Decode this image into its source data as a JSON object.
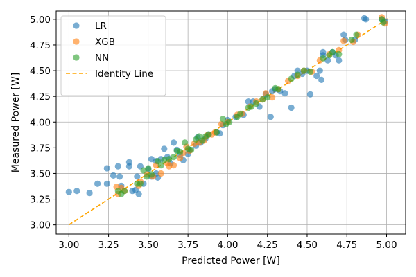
{
  "chart_data": {
    "type": "scatter",
    "title": "",
    "xlabel": "Predicted Power [W]",
    "ylabel": "Measured Power [W]",
    "xlim": [
      2.92,
      5.12
    ],
    "ylim": [
      2.91,
      5.08
    ],
    "xticks": [
      "3.00",
      "3.25",
      "3.50",
      "3.75",
      "4.00",
      "4.25",
      "4.50",
      "4.75",
      "5.00"
    ],
    "yticks": [
      "3.00",
      "3.25",
      "3.50",
      "3.75",
      "4.00",
      "4.25",
      "4.50",
      "4.75",
      "5.00"
    ],
    "grid": true,
    "legend_position": "top-left",
    "series": [
      {
        "name": "LR",
        "kind": "scatter",
        "color": "#1f77b4",
        "points": [
          [
            3.0,
            3.32
          ],
          [
            3.05,
            3.33
          ],
          [
            3.13,
            3.31
          ],
          [
            3.18,
            3.4
          ],
          [
            3.24,
            3.55
          ],
          [
            3.24,
            3.4
          ],
          [
            3.28,
            3.48
          ],
          [
            3.31,
            3.57
          ],
          [
            3.32,
            3.47
          ],
          [
            3.33,
            3.38
          ],
          [
            3.38,
            3.57
          ],
          [
            3.38,
            3.61
          ],
          [
            3.4,
            3.33
          ],
          [
            3.42,
            3.34
          ],
          [
            3.43,
            3.47
          ],
          [
            3.44,
            3.3
          ],
          [
            3.45,
            3.57
          ],
          [
            3.47,
            3.4
          ],
          [
            3.5,
            3.54
          ],
          [
            3.52,
            3.64
          ],
          [
            3.52,
            3.47
          ],
          [
            3.55,
            3.5
          ],
          [
            3.55,
            3.62
          ],
          [
            3.56,
            3.46
          ],
          [
            3.58,
            3.64
          ],
          [
            3.6,
            3.74
          ],
          [
            3.62,
            3.66
          ],
          [
            3.64,
            3.6
          ],
          [
            3.66,
            3.8
          ],
          [
            3.68,
            3.73
          ],
          [
            3.7,
            3.68
          ],
          [
            3.72,
            3.63
          ],
          [
            3.75,
            3.69
          ],
          [
            3.76,
            3.73
          ],
          [
            3.8,
            3.77
          ],
          [
            3.81,
            3.85
          ],
          [
            3.83,
            3.8
          ],
          [
            3.86,
            3.84
          ],
          [
            3.88,
            3.88
          ],
          [
            3.93,
            3.9
          ],
          [
            3.95,
            3.89
          ],
          [
            3.97,
            3.97
          ],
          [
            4.0,
            4.02
          ],
          [
            4.05,
            4.05
          ],
          [
            4.1,
            4.07
          ],
          [
            4.13,
            4.2
          ],
          [
            4.16,
            4.2
          ],
          [
            4.2,
            4.15
          ],
          [
            4.24,
            4.27
          ],
          [
            4.27,
            4.05
          ],
          [
            4.28,
            4.3
          ],
          [
            4.3,
            4.32
          ],
          [
            4.33,
            4.3
          ],
          [
            4.36,
            4.28
          ],
          [
            4.4,
            4.14
          ],
          [
            4.42,
            4.45
          ],
          [
            4.44,
            4.5
          ],
          [
            4.47,
            4.47
          ],
          [
            4.5,
            4.5
          ],
          [
            4.52,
            4.27
          ],
          [
            4.56,
            4.45
          ],
          [
            4.58,
            4.5
          ],
          [
            4.59,
            4.41
          ],
          [
            4.6,
            4.65
          ],
          [
            4.6,
            4.68
          ],
          [
            4.63,
            4.6
          ],
          [
            4.66,
            4.68
          ],
          [
            4.68,
            4.65
          ],
          [
            4.7,
            4.6
          ],
          [
            4.73,
            4.85
          ],
          [
            4.74,
            4.8
          ],
          [
            4.8,
            4.8
          ],
          [
            4.86,
            5.01
          ],
          [
            4.87,
            5.0
          ],
          [
            4.97,
            5.0
          ],
          [
            4.99,
            4.98
          ]
        ]
      },
      {
        "name": "XGB",
        "kind": "scatter",
        "color": "#ff7f0e",
        "points": [
          [
            3.3,
            3.37
          ],
          [
            3.31,
            3.3
          ],
          [
            3.33,
            3.36
          ],
          [
            3.35,
            3.33
          ],
          [
            3.44,
            3.38
          ],
          [
            3.45,
            3.42
          ],
          [
            3.49,
            3.49
          ],
          [
            3.53,
            3.47
          ],
          [
            3.55,
            3.58
          ],
          [
            3.58,
            3.5
          ],
          [
            3.62,
            3.6
          ],
          [
            3.63,
            3.57
          ],
          [
            3.66,
            3.58
          ],
          [
            3.7,
            3.65
          ],
          [
            3.72,
            3.7
          ],
          [
            3.74,
            3.76
          ],
          [
            3.76,
            3.72
          ],
          [
            3.79,
            3.79
          ],
          [
            3.82,
            3.8
          ],
          [
            3.85,
            3.82
          ],
          [
            3.87,
            3.87
          ],
          [
            3.9,
            3.88
          ],
          [
            3.92,
            3.9
          ],
          [
            3.96,
            3.98
          ],
          [
            4.0,
            4.0
          ],
          [
            4.06,
            4.07
          ],
          [
            4.09,
            4.08
          ],
          [
            4.14,
            4.15
          ],
          [
            4.18,
            4.2
          ],
          [
            4.22,
            4.22
          ],
          [
            4.24,
            4.28
          ],
          [
            4.28,
            4.24
          ],
          [
            4.32,
            4.32
          ],
          [
            4.38,
            4.4
          ],
          [
            4.44,
            4.45
          ],
          [
            4.48,
            4.5
          ],
          [
            4.53,
            4.49
          ],
          [
            4.58,
            4.6
          ],
          [
            4.64,
            4.66
          ],
          [
            4.7,
            4.7
          ],
          [
            4.73,
            4.79
          ],
          [
            4.79,
            4.78
          ],
          [
            4.82,
            4.85
          ],
          [
            4.97,
            5.02
          ],
          [
            4.99,
            4.96
          ]
        ]
      },
      {
        "name": "NN",
        "kind": "scatter",
        "color": "#2ca02c",
        "points": [
          [
            3.31,
            3.33
          ],
          [
            3.33,
            3.3
          ],
          [
            3.35,
            3.33
          ],
          [
            3.43,
            3.4
          ],
          [
            3.45,
            3.4
          ],
          [
            3.47,
            3.53
          ],
          [
            3.49,
            3.47
          ],
          [
            3.5,
            3.55
          ],
          [
            3.52,
            3.49
          ],
          [
            3.56,
            3.62
          ],
          [
            3.58,
            3.58
          ],
          [
            3.6,
            3.63
          ],
          [
            3.63,
            3.64
          ],
          [
            3.66,
            3.66
          ],
          [
            3.68,
            3.72
          ],
          [
            3.7,
            3.71
          ],
          [
            3.73,
            3.8
          ],
          [
            3.75,
            3.74
          ],
          [
            3.77,
            3.73
          ],
          [
            3.8,
            3.83
          ],
          [
            3.82,
            3.86
          ],
          [
            3.84,
            3.82
          ],
          [
            3.86,
            3.86
          ],
          [
            3.88,
            3.88
          ],
          [
            3.93,
            3.9
          ],
          [
            3.97,
            4.03
          ],
          [
            3.99,
            3.98
          ],
          [
            4.01,
            4.0
          ],
          [
            4.06,
            4.05
          ],
          [
            4.08,
            4.08
          ],
          [
            4.13,
            4.14
          ],
          [
            4.15,
            4.15
          ],
          [
            4.18,
            4.18
          ],
          [
            4.22,
            4.22
          ],
          [
            4.25,
            4.24
          ],
          [
            4.3,
            4.33
          ],
          [
            4.32,
            4.32
          ],
          [
            4.4,
            4.42
          ],
          [
            4.44,
            4.46
          ],
          [
            4.48,
            4.5
          ],
          [
            4.52,
            4.49
          ],
          [
            4.6,
            4.62
          ],
          [
            4.64,
            4.65
          ],
          [
            4.66,
            4.68
          ],
          [
            4.7,
            4.66
          ],
          [
            4.78,
            4.8
          ],
          [
            4.81,
            4.85
          ],
          [
            4.97,
            5.0
          ],
          [
            4.98,
            4.97
          ]
        ]
      },
      {
        "name": "Identity Line",
        "kind": "line",
        "style": "dashed",
        "color": "#ffa500",
        "x": [
          3.0,
          5.02
        ],
        "y": [
          3.0,
          5.02
        ]
      }
    ]
  }
}
